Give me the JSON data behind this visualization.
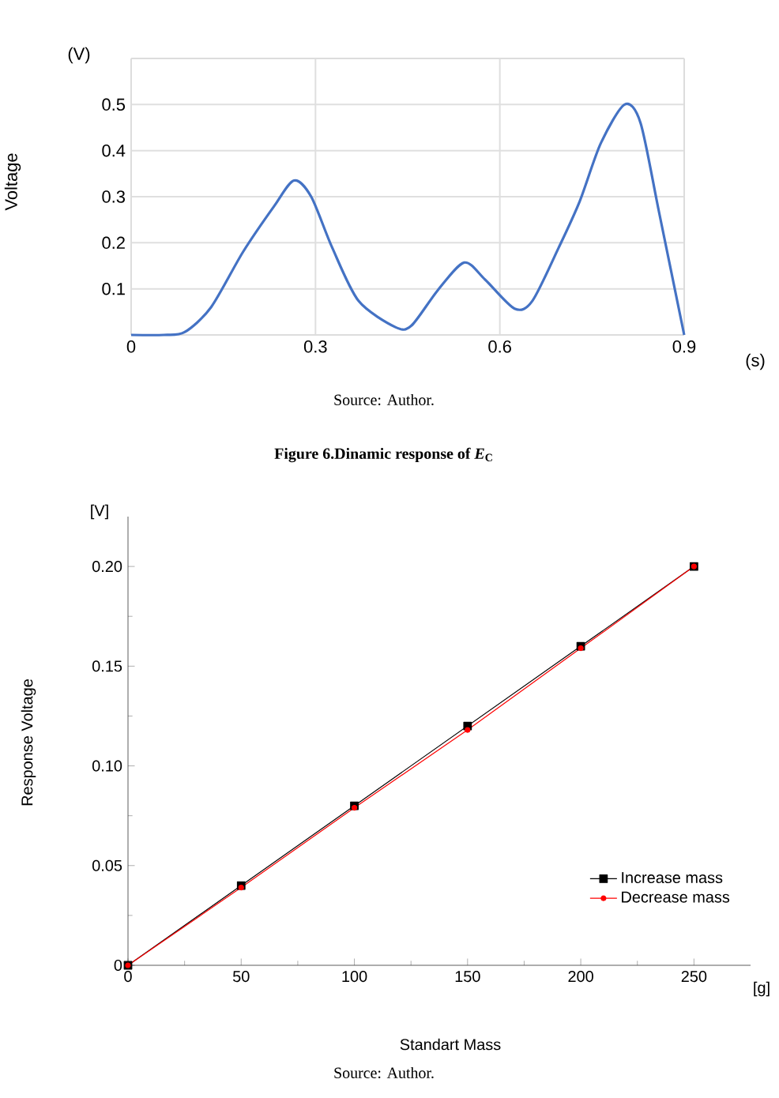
{
  "chart_data": [
    {
      "type": "line",
      "xlabel": "(s)",
      "ylabel": "Voltage",
      "annotations": [
        "(V)",
        "Source: Author.",
        "Figure 6.Dinamic response of *E*$_{C}$"
      ],
      "x": [
        0,
        0.053,
        0.087,
        0.13,
        0.182,
        0.233,
        0.265,
        0.293,
        0.327,
        0.37,
        0.43,
        0.456,
        0.499,
        0.542,
        0.576,
        0.624,
        0.653,
        0.696,
        0.73,
        0.764,
        0.803,
        0.829,
        0.859,
        0.9
      ],
      "values": [
        0,
        0,
        0.006,
        0.06,
        0.18,
        0.28,
        0.335,
        0.3,
        0.19,
        0.074,
        0.017,
        0.02,
        0.097,
        0.157,
        0.12,
        0.057,
        0.074,
        0.19,
        0.29,
        0.415,
        0.5,
        0.46,
        0.267,
        0
      ],
      "color": "#4472c4",
      "marker": "none",
      "line_style": "solid",
      "xlim": [
        0,
        0.9
      ],
      "ylim": [
        0,
        0.6
      ],
      "xticks": [
        0,
        0.3,
        0.6,
        0.9
      ],
      "yticks": [
        {
          "value": 0,
          "label": null
        },
        0.1,
        0.2,
        0.3,
        0.4,
        0.5,
        {
          "value": 0.6,
          "label": null
        }
      ],
      "grid": true,
      "legend": false
    },
    {
      "type": "line",
      "xlabel": "Standart Mass",
      "ylabel": "Response Voltage",
      "annotations": [
        "[V]",
        "[g]",
        "Source: Author."
      ],
      "x": [
        0,
        50,
        100,
        150,
        200,
        250
      ],
      "series": [
        {
          "name": "Increase mass",
          "color": "#000000",
          "marker": "square",
          "values": [
            0,
            0.04,
            0.08,
            0.12,
            0.16,
            0.2
          ]
        },
        {
          "name": "Decrease mass",
          "color": "#ff0000",
          "marker": "circle",
          "values": [
            0,
            0.039,
            0.079,
            0.118,
            0.159,
            0.2
          ]
        }
      ],
      "line_style": "solid",
      "xlim": [
        0,
        275
      ],
      "ylim": [
        0,
        0.225
      ],
      "xticks": [
        0,
        50,
        100,
        150,
        200,
        250
      ],
      "yticks": [
        0,
        {
          "value": 0.05,
          "label": "0.05"
        },
        {
          "value": 0.1,
          "label": "0.10"
        },
        {
          "value": 0.15,
          "label": "0.15"
        },
        {
          "value": 0.2,
          "label": "0.20"
        }
      ],
      "grid": false,
      "legend": "bottom right"
    }
  ]
}
